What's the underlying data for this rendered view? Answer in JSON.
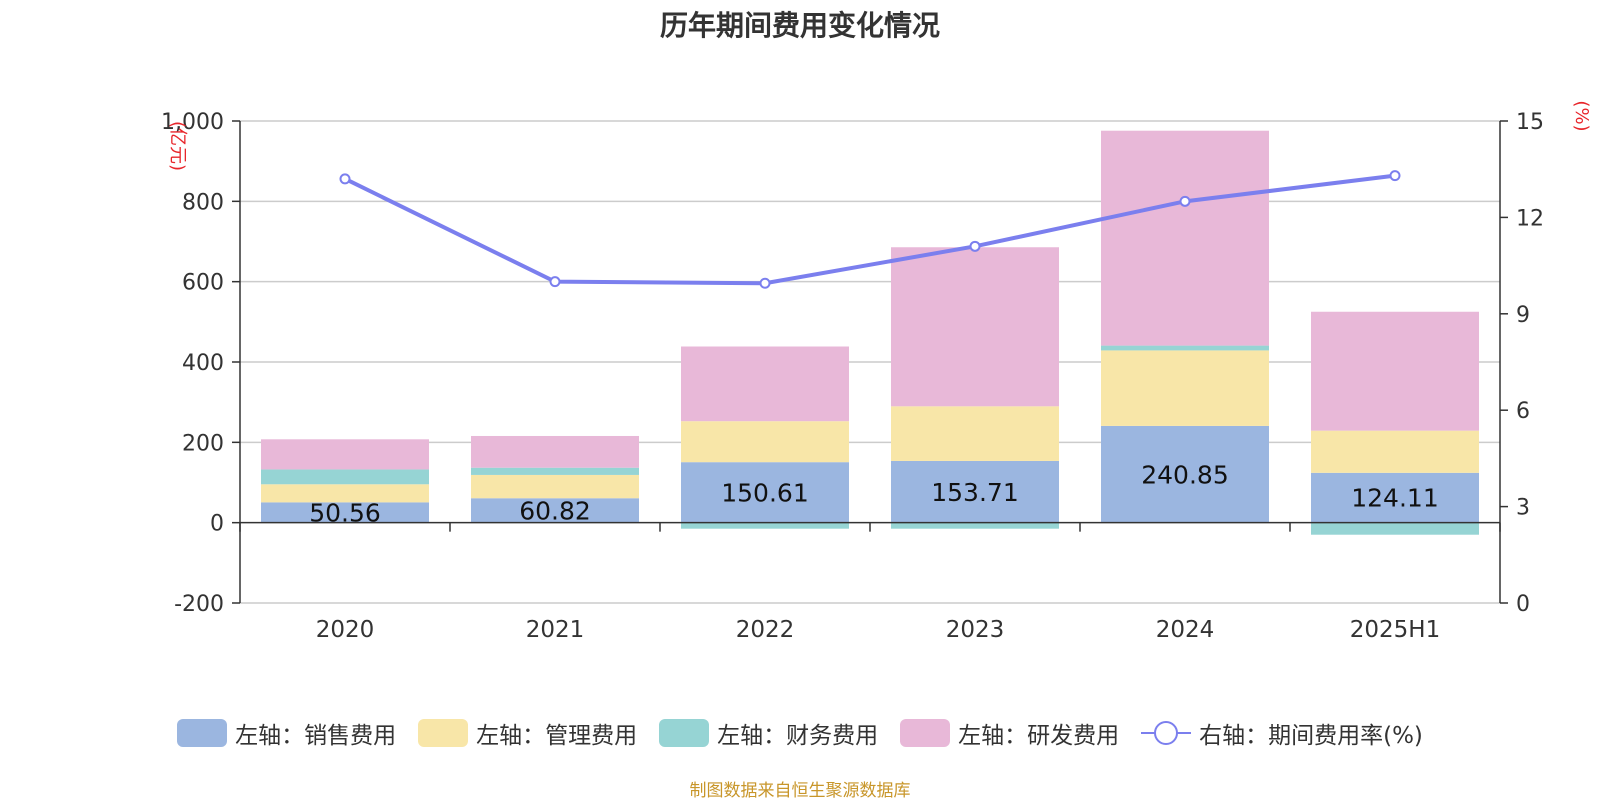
{
  "chart_data": {
    "type": "bar",
    "title": "历年期间费用变化情况",
    "categories": [
      "2020",
      "2021",
      "2022",
      "2023",
      "2024",
      "2025H1"
    ],
    "left_axis": {
      "unit": "(亿元)",
      "ylim": [
        -200,
        1000
      ],
      "ticks": [
        "-200",
        "0",
        "200",
        "400",
        "600",
        "800",
        "1,000"
      ]
    },
    "right_axis": {
      "unit": "(%)",
      "ylim": [
        0,
        15
      ],
      "ticks": [
        "0",
        "3",
        "6",
        "9",
        "12",
        "15"
      ]
    },
    "series": [
      {
        "name": "左轴：销售费用",
        "kind": "bar",
        "color": "#9bb6e0",
        "values": [
          50.56,
          60.82,
          150.61,
          153.71,
          240.85,
          124.11
        ],
        "show_labels": true
      },
      {
        "name": "左轴：管理费用",
        "kind": "bar",
        "color": "#f8e6a8",
        "values": [
          45,
          58,
          102,
          136,
          188,
          105
        ]
      },
      {
        "name": "左轴：财务费用",
        "kind": "bar",
        "color": "#96d4d4",
        "values": [
          37,
          18,
          -15,
          -15,
          12,
          -30
        ]
      },
      {
        "name": "左轴：研发费用",
        "kind": "bar",
        "color": "#e8b8d8",
        "values": [
          75,
          79,
          186,
          396,
          535,
          296
        ]
      },
      {
        "name": "右轴：期间费用率(%)",
        "kind": "line",
        "axis": "right",
        "color": "#7b7fee",
        "values": [
          13.2,
          10.0,
          9.95,
          11.1,
          12.5,
          13.3
        ]
      }
    ],
    "legend_position": "bottom",
    "grid": true
  },
  "source_note": "制图数据来自恒生聚源数据库"
}
